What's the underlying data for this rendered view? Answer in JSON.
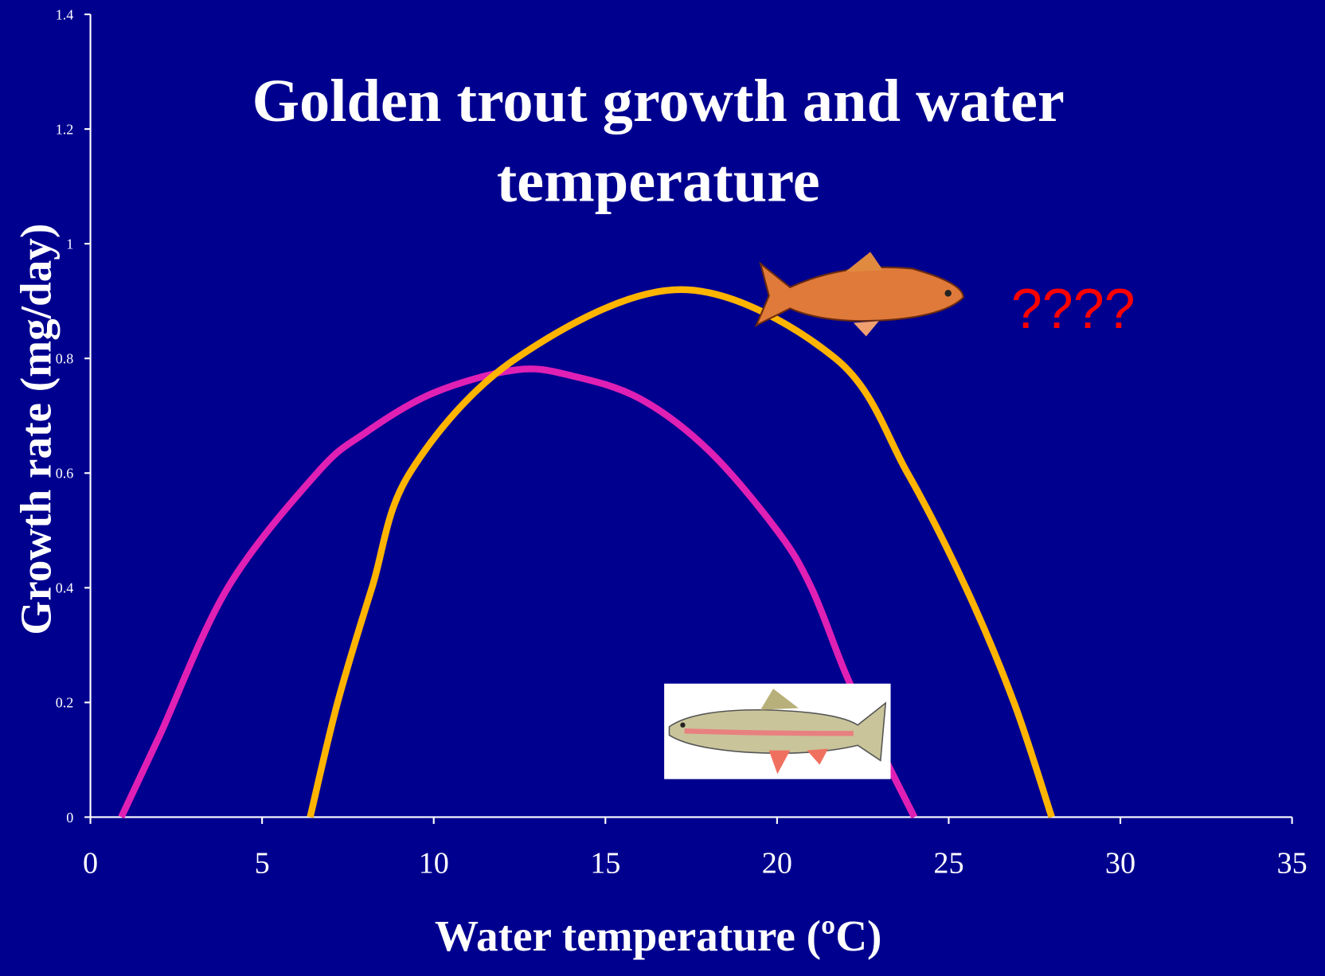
{
  "chart_data": {
    "type": "line",
    "title": "Golden trout growth and water temperature",
    "x_label": "Water temperature (ºC)",
    "y_label": "Growth rate (mg/day)",
    "annotation": "????",
    "xlim": [
      0,
      35
    ],
    "xticks": [
      0,
      5,
      10,
      15,
      20,
      25,
      30,
      35
    ],
    "ylim": [
      0,
      1.4
    ],
    "yticks": [
      0,
      0.2,
      0.4,
      0.6,
      0.8,
      1,
      1.2,
      1.4
    ],
    "series": [
      {
        "color": "#e020b4",
        "x": [
          0.9,
          2,
          4,
          6.6,
          8,
          10,
          12.4,
          14,
          16,
          18,
          20,
          21,
          22,
          23,
          24
        ],
        "values": [
          0,
          0.14,
          0.4,
          0.6,
          0.67,
          0.74,
          0.78,
          0.77,
          0.73,
          0.64,
          0.5,
          0.4,
          0.25,
          0.12,
          0
        ]
      },
      {
        "color": "#ffb400",
        "x": [
          6.4,
          7.2,
          8.2,
          9.3,
          12.4,
          17.2,
          21.7,
          23.8,
          25.5,
          26.9,
          28
        ],
        "values": [
          0,
          0.2,
          0.4,
          0.6,
          0.8,
          0.92,
          0.8,
          0.6,
          0.4,
          0.2,
          0
        ]
      }
    ]
  }
}
